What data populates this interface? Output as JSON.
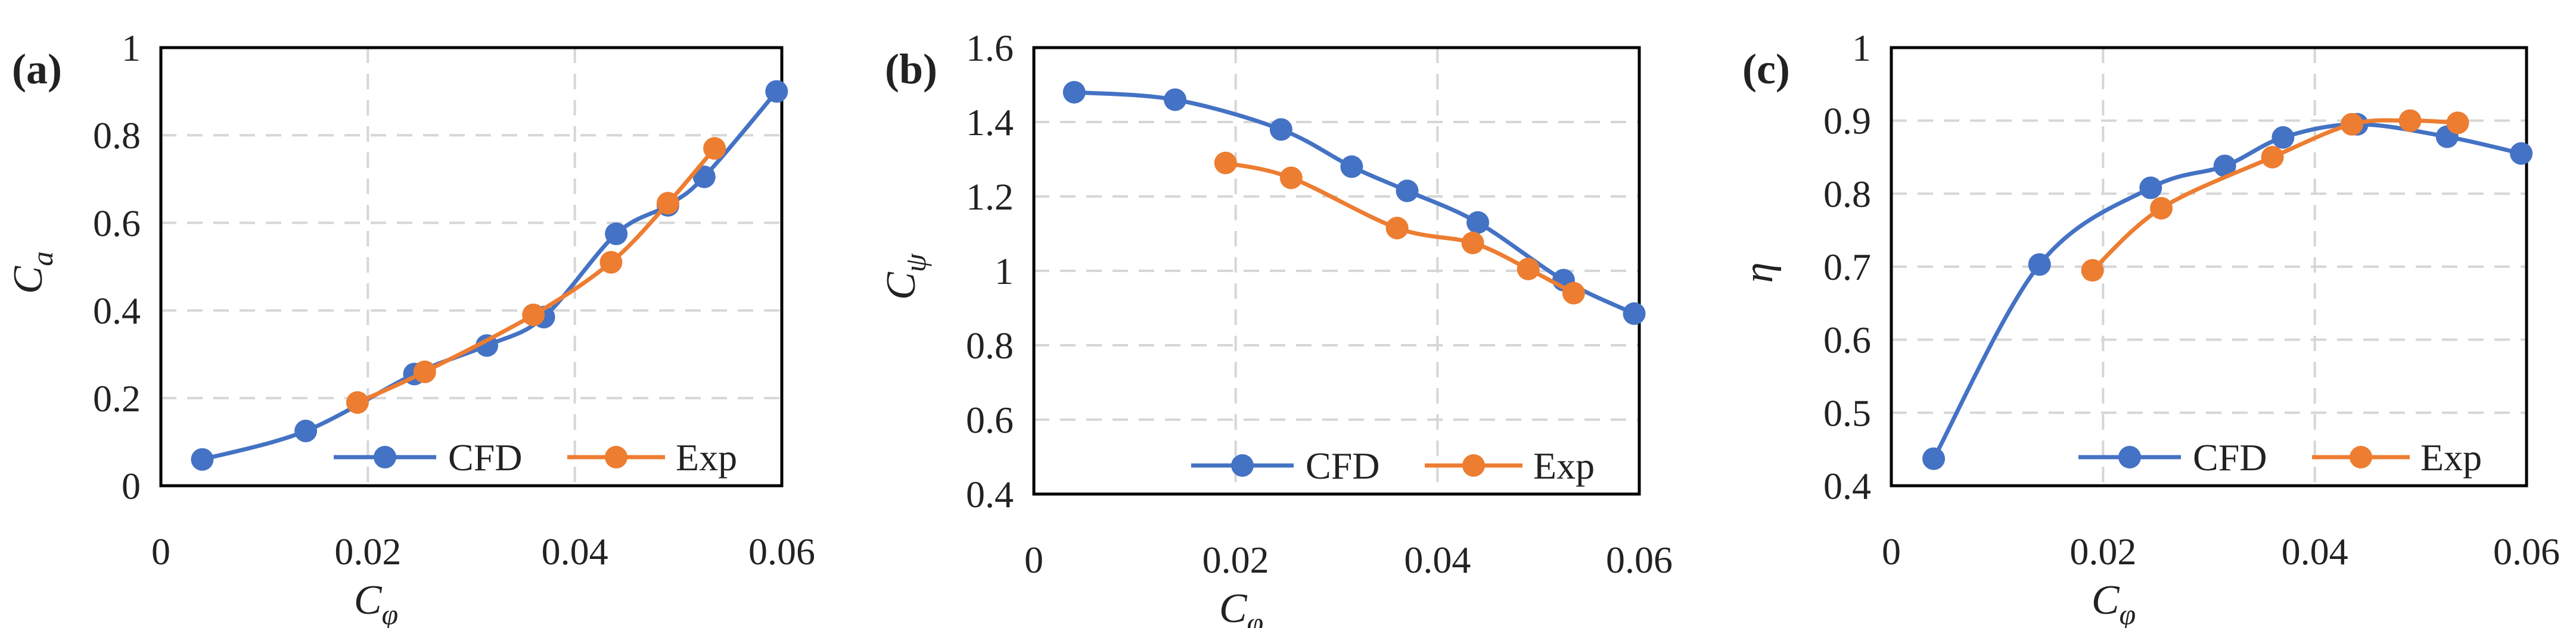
{
  "colors": {
    "cfd": "#4472C4",
    "exp": "#ED7D31",
    "grid": "#d6d6d6",
    "frame": "#000000"
  },
  "chart_data": [
    {
      "type": "line",
      "panel_label": "(a)",
      "title": "",
      "xlabel": "C",
      "xlabel_sub": "φ",
      "ylabel": "C",
      "ylabel_sub": "a",
      "xlim": [
        0,
        0.06
      ],
      "ylim": [
        0,
        1
      ],
      "x_ticks": [
        0,
        0.02,
        0.04,
        0.06
      ],
      "x_tick_labels": [
        "0",
        "0.02",
        "0.04",
        "0.06"
      ],
      "y_ticks": [
        0,
        0.2,
        0.4,
        0.6,
        0.8,
        1
      ],
      "y_tick_labels": [
        "0",
        "0.2",
        "0.4",
        "0.6",
        "0.8",
        "1"
      ],
      "grid": true,
      "legend_position": "bottom-right",
      "series": [
        {
          "name": "CFD",
          "x": [
            0.004,
            0.014,
            0.0245,
            0.0315,
            0.037,
            0.044,
            0.049,
            0.0525,
            0.0595
          ],
          "y": [
            0.06,
            0.125,
            0.255,
            0.32,
            0.385,
            0.575,
            0.64,
            0.705,
            0.9
          ]
        },
        {
          "name": "Exp",
          "x": [
            0.019,
            0.0255,
            0.036,
            0.0435,
            0.049,
            0.0535
          ],
          "y": [
            0.19,
            0.26,
            0.39,
            0.51,
            0.645,
            0.77
          ]
        }
      ]
    },
    {
      "type": "line",
      "panel_label": "(b)",
      "title": "",
      "xlabel": "C",
      "xlabel_sub": "φ",
      "ylabel": "C",
      "ylabel_sub": "ψ",
      "xlim": [
        0,
        0.06
      ],
      "ylim": [
        0.4,
        1.6
      ],
      "x_ticks": [
        0,
        0.02,
        0.04,
        0.06
      ],
      "x_tick_labels": [
        "0",
        "0.02",
        "0.04",
        "0.06"
      ],
      "y_ticks": [
        0.4,
        0.6,
        0.8,
        1,
        1.2,
        1.4,
        1.6
      ],
      "y_tick_labels": [
        "0.4",
        "0.6",
        "0.8",
        "1",
        "1.2",
        "1.4",
        "1.6"
      ],
      "grid": true,
      "legend_position": "bottom-right",
      "series": [
        {
          "name": "CFD",
          "x": [
            0.004,
            0.014,
            0.0245,
            0.0315,
            0.037,
            0.044,
            0.0525,
            0.0595
          ],
          "y": [
            1.48,
            1.46,
            1.38,
            1.28,
            1.215,
            1.13,
            0.975,
            0.885
          ]
        },
        {
          "name": "Exp",
          "x": [
            0.019,
            0.0255,
            0.036,
            0.0435,
            0.049,
            0.0535
          ],
          "y": [
            1.29,
            1.25,
            1.115,
            1.075,
            1.005,
            0.94
          ]
        }
      ]
    },
    {
      "type": "line",
      "panel_label": "(c)",
      "title": "",
      "xlabel": "C",
      "xlabel_sub": "φ",
      "ylabel": "η",
      "ylabel_sub": "",
      "xlim": [
        0,
        0.06
      ],
      "ylim": [
        0.4,
        1
      ],
      "x_ticks": [
        0,
        0.02,
        0.04,
        0.06
      ],
      "x_tick_labels": [
        "0",
        "0.02",
        "0.04",
        "0.06"
      ],
      "y_ticks": [
        0.4,
        0.5,
        0.6,
        0.7,
        0.8,
        0.9,
        1
      ],
      "y_tick_labels": [
        "0.4",
        "0.5",
        "0.6",
        "0.7",
        "0.8",
        "0.9",
        "1"
      ],
      "grid": true,
      "legend_position": "bottom-right",
      "series": [
        {
          "name": "CFD",
          "x": [
            0.004,
            0.014,
            0.0245,
            0.0315,
            0.037,
            0.044,
            0.0525,
            0.0595
          ],
          "y": [
            0.437,
            0.703,
            0.808,
            0.838,
            0.877,
            0.895,
            0.878,
            0.855
          ]
        },
        {
          "name": "Exp",
          "x": [
            0.019,
            0.0255,
            0.036,
            0.0435,
            0.049,
            0.0535
          ],
          "y": [
            0.695,
            0.78,
            0.85,
            0.895,
            0.9,
            0.897
          ]
        }
      ]
    }
  ]
}
